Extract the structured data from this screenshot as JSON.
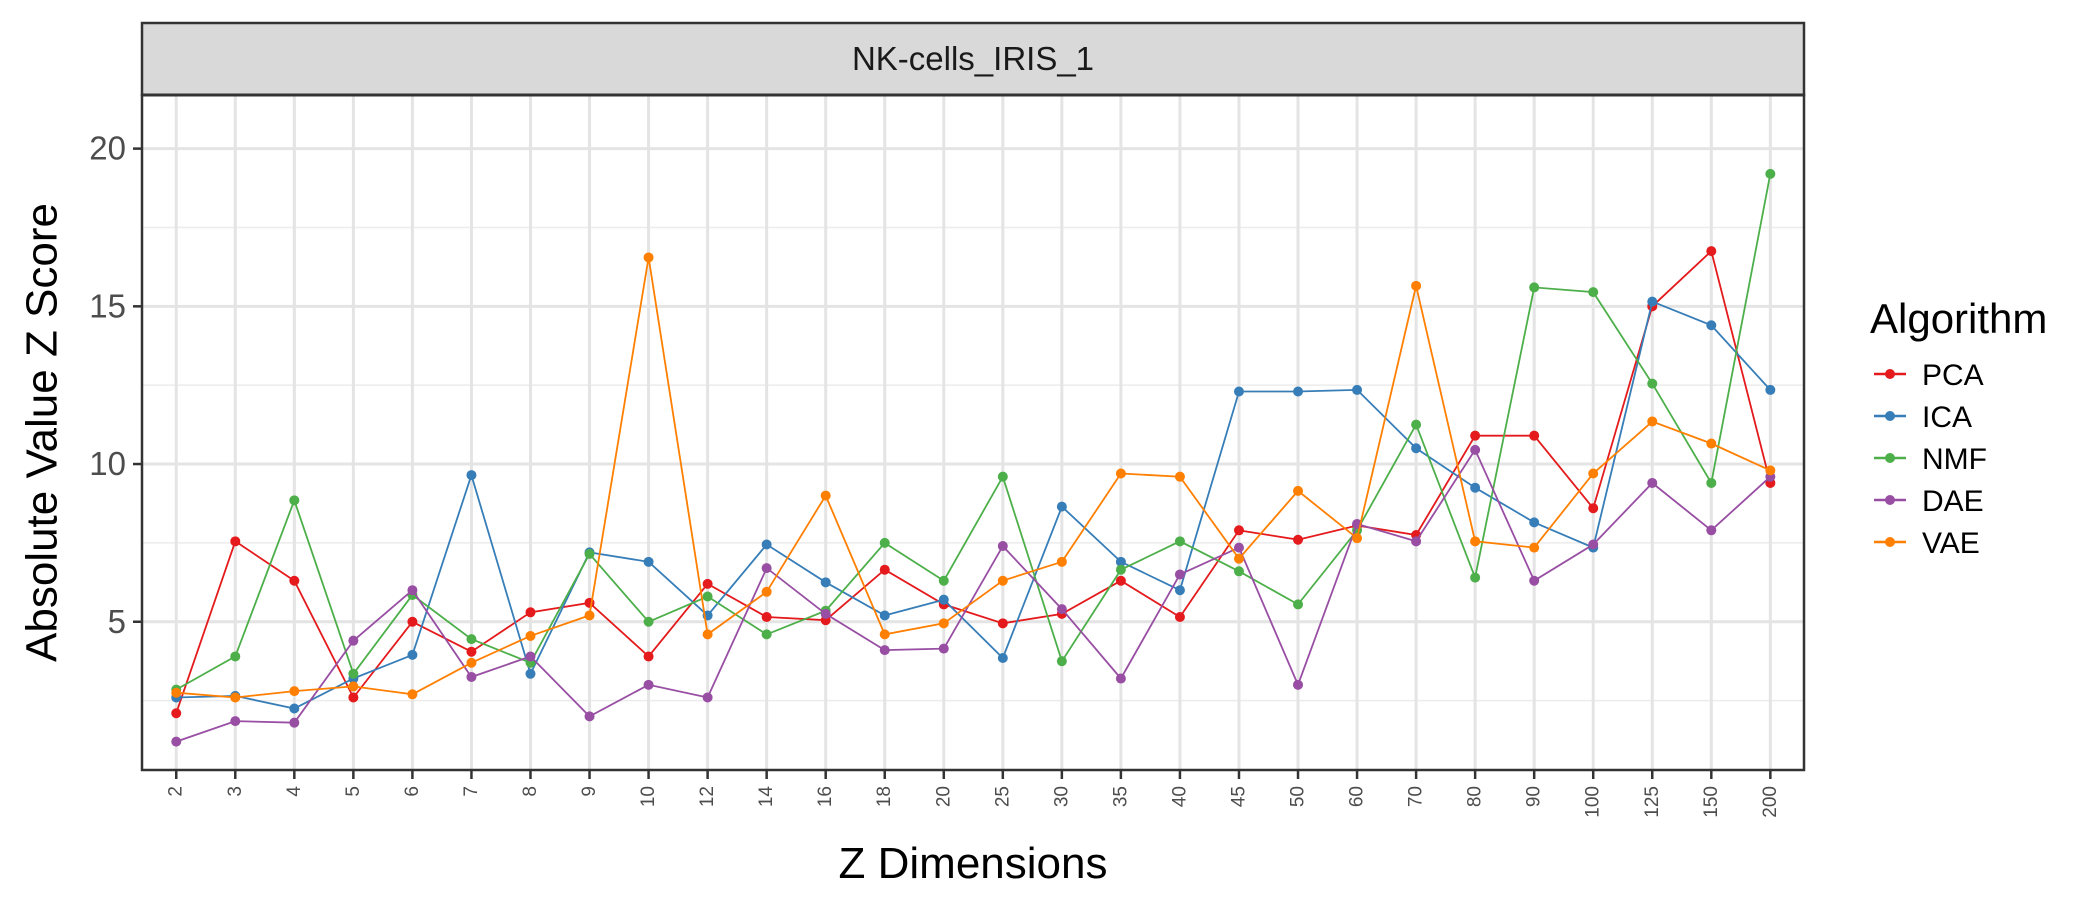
{
  "chart_data": {
    "type": "line",
    "panel_title": "NK-cells_IRIS_1",
    "xlabel": "Z Dimensions",
    "ylabel": "Absolute Value Z Score",
    "categories": [
      "2",
      "3",
      "4",
      "5",
      "6",
      "7",
      "8",
      "9",
      "10",
      "12",
      "14",
      "16",
      "18",
      "20",
      "25",
      "30",
      "35",
      "40",
      "45",
      "50",
      "60",
      "70",
      "80",
      "90",
      "100",
      "125",
      "150",
      "200"
    ],
    "ylim": [
      0.3,
      21.7
    ],
    "yticks": [
      5,
      10,
      15,
      20
    ],
    "grid": true,
    "legend": {
      "title": "Algorithm",
      "position": "right"
    },
    "series": [
      {
        "name": "PCA",
        "color": "#e41a1c",
        "values": [
          2.1,
          7.55,
          6.3,
          2.6,
          5.0,
          4.05,
          5.3,
          5.6,
          3.9,
          6.2,
          5.15,
          5.05,
          6.65,
          5.55,
          4.95,
          5.25,
          6.3,
          5.15,
          7.9,
          7.6,
          8.05,
          7.75,
          10.9,
          10.9,
          8.6,
          15.0,
          16.75,
          9.4
        ]
      },
      {
        "name": "ICA",
        "color": "#377eb8",
        "values": [
          2.6,
          2.65,
          2.25,
          3.2,
          3.95,
          9.65,
          3.35,
          7.2,
          6.9,
          5.2,
          7.45,
          6.25,
          5.2,
          5.7,
          3.85,
          8.65,
          6.9,
          6.0,
          12.3,
          12.3,
          12.35,
          10.5,
          9.25,
          8.15,
          7.35,
          15.15,
          14.4,
          12.35
        ]
      },
      {
        "name": "NMF",
        "color": "#4daf4a",
        "values": [
          2.85,
          3.9,
          8.85,
          3.35,
          5.85,
          4.45,
          3.7,
          7.15,
          5.0,
          5.8,
          4.6,
          5.35,
          7.5,
          6.3,
          9.6,
          3.75,
          6.65,
          7.55,
          6.6,
          5.55,
          7.9,
          11.25,
          6.4,
          15.6,
          15.45,
          12.55,
          9.4,
          19.2
        ]
      },
      {
        "name": "DAE",
        "color": "#984ea3",
        "values": [
          1.2,
          1.85,
          1.8,
          4.4,
          6.0,
          3.25,
          3.9,
          2.0,
          3.0,
          2.6,
          6.7,
          5.25,
          4.1,
          4.15,
          7.4,
          5.4,
          3.2,
          6.5,
          7.35,
          3.0,
          8.1,
          7.55,
          10.45,
          6.3,
          7.45,
          9.4,
          7.9,
          9.6
        ]
      },
      {
        "name": "VAE",
        "color": "#ff7f00",
        "values": [
          2.75,
          2.6,
          2.8,
          2.95,
          2.7,
          3.7,
          4.55,
          5.2,
          16.55,
          4.6,
          5.95,
          9.0,
          4.6,
          4.95,
          6.3,
          6.9,
          9.7,
          9.6,
          7.0,
          9.15,
          7.65,
          15.65,
          7.55,
          7.35,
          9.7,
          11.35,
          10.65,
          9.8
        ]
      }
    ]
  }
}
